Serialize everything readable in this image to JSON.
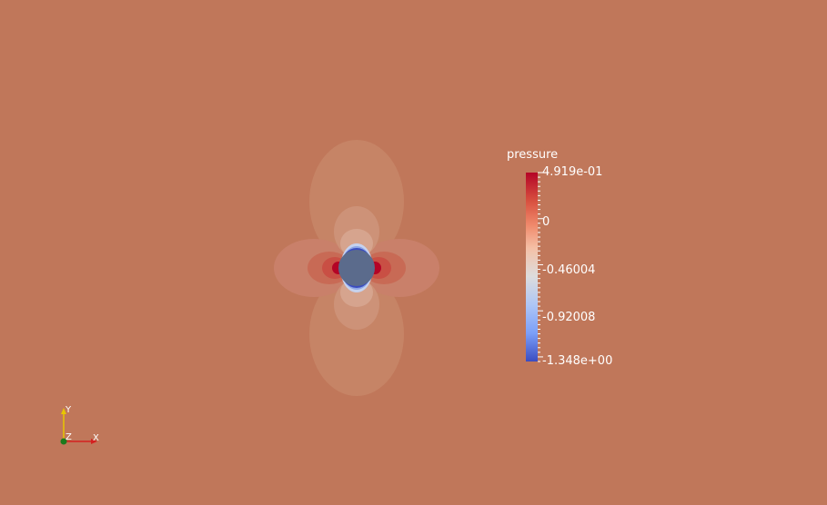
{
  "scalar_bar": {
    "title": "pressure",
    "labels": [
      "4.919e-01",
      "0",
      "-0.46004",
      "-0.92008",
      "-1.348e+00"
    ],
    "label_values": [
      0.4919,
      0,
      -0.46004,
      -0.92008,
      -1.348
    ],
    "range": [
      -1.348,
      0.4919
    ],
    "colormap": "cool-to-warm"
  },
  "orientation_axes": {
    "x": "X",
    "y": "Y",
    "z": "Z"
  },
  "colors": {
    "background": "#c0775a",
    "body": "#5b6b8c",
    "high": "#b40426",
    "low": "#3b4cc0",
    "mid": "#dddddd"
  }
}
